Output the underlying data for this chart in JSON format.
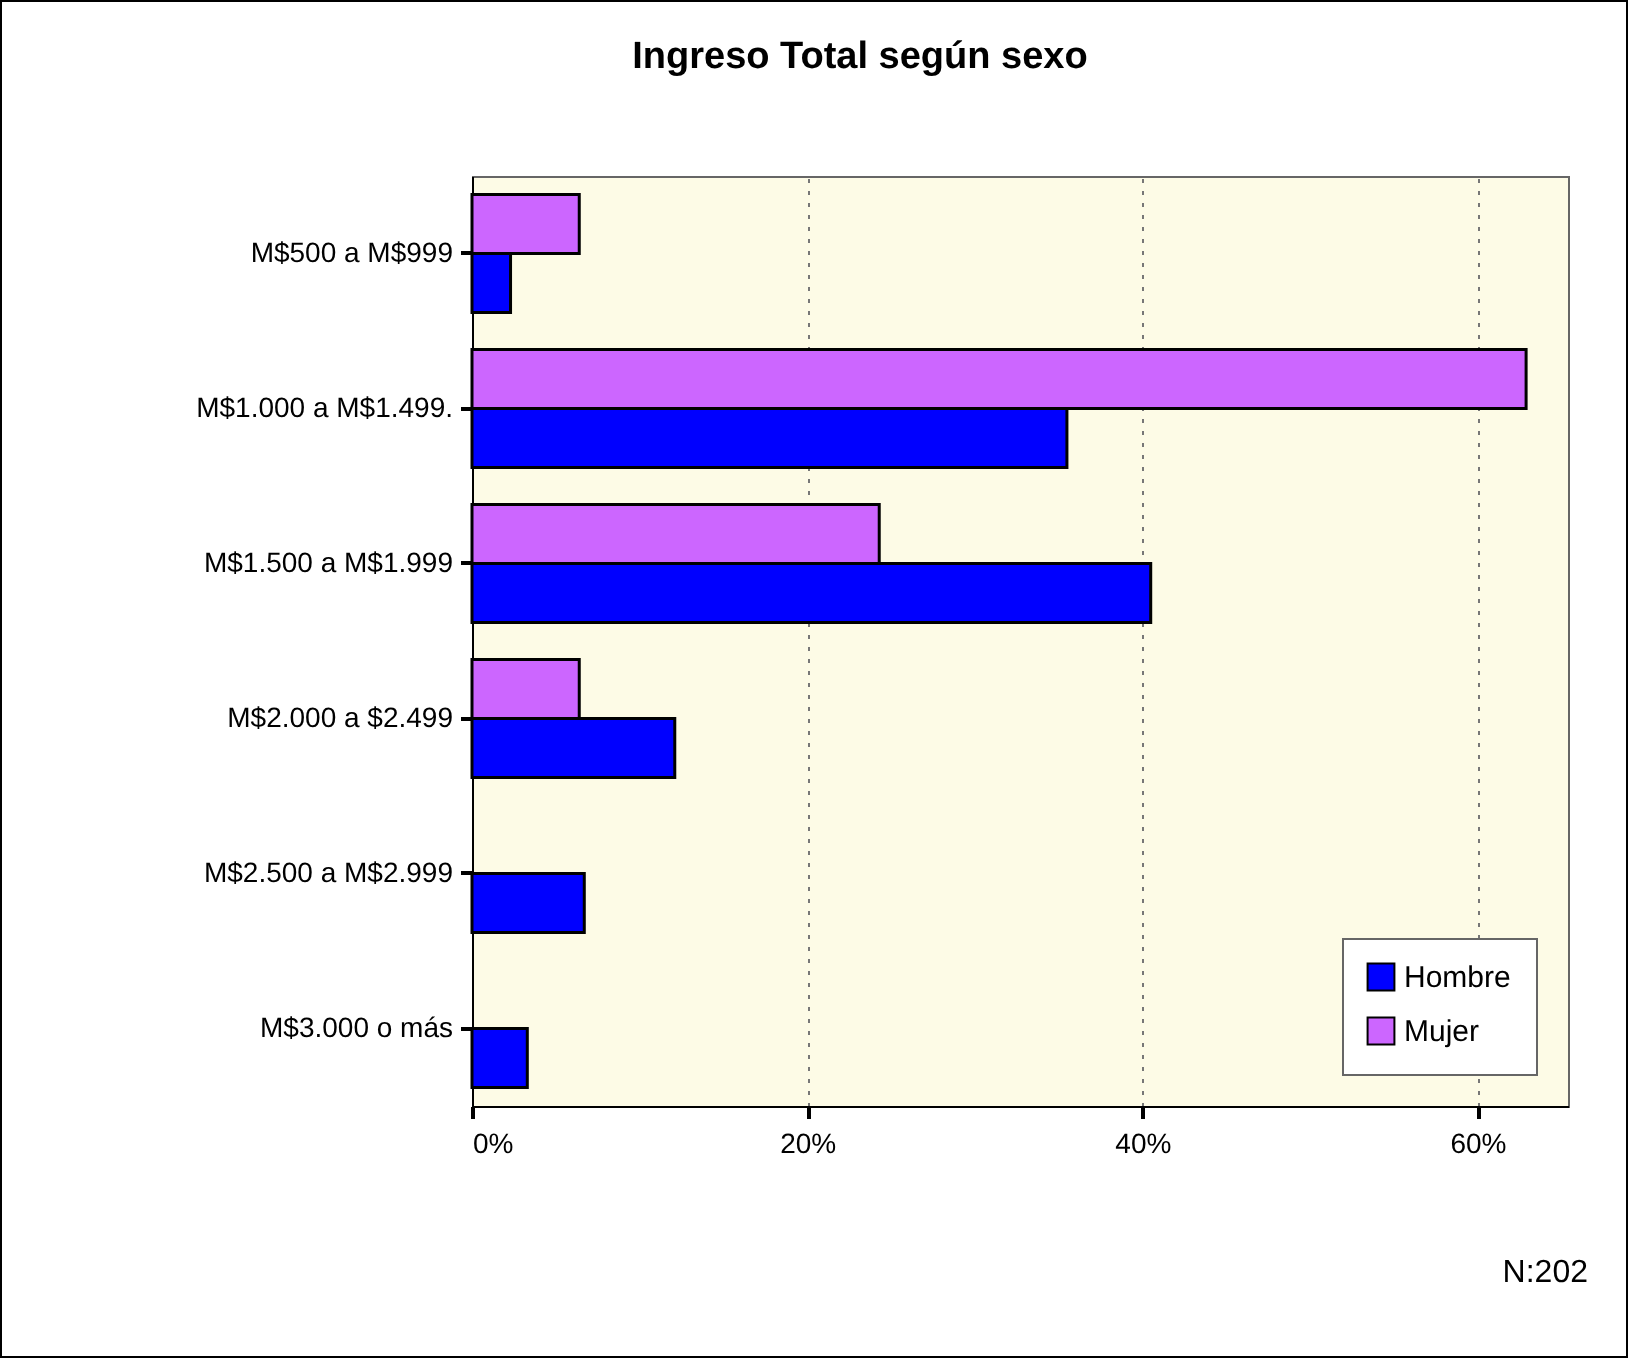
{
  "chart_data": {
    "type": "bar",
    "orientation": "horizontal",
    "title": "Ingreso Total según sexo",
    "categories": [
      "M$500 a M$999",
      "M$1.000 a M$1.499.",
      "M$1.500 a M$1.999",
      "M$2.000 a $2.499",
      "M$2.500 a M$2.999",
      "M$3.000 o más"
    ],
    "series": [
      {
        "name": "Mujer",
        "color": "#cc66ff",
        "values": [
          6.4,
          62.9,
          24.3,
          6.4,
          0,
          0
        ]
      },
      {
        "name": "Hombre",
        "color": "#0000ff",
        "values": [
          2.3,
          35.5,
          40.5,
          12.1,
          6.7,
          3.3
        ]
      }
    ],
    "xlim": [
      0,
      65.4
    ],
    "xticks": [
      {
        "value": 0,
        "label": "0%"
      },
      {
        "value": 20,
        "label": "20%"
      },
      {
        "value": 40,
        "label": "40%"
      },
      {
        "value": 60,
        "label": "60%"
      }
    ],
    "grid": "x",
    "legend": "bottom right",
    "annotations": [
      "N:202"
    ]
  }
}
